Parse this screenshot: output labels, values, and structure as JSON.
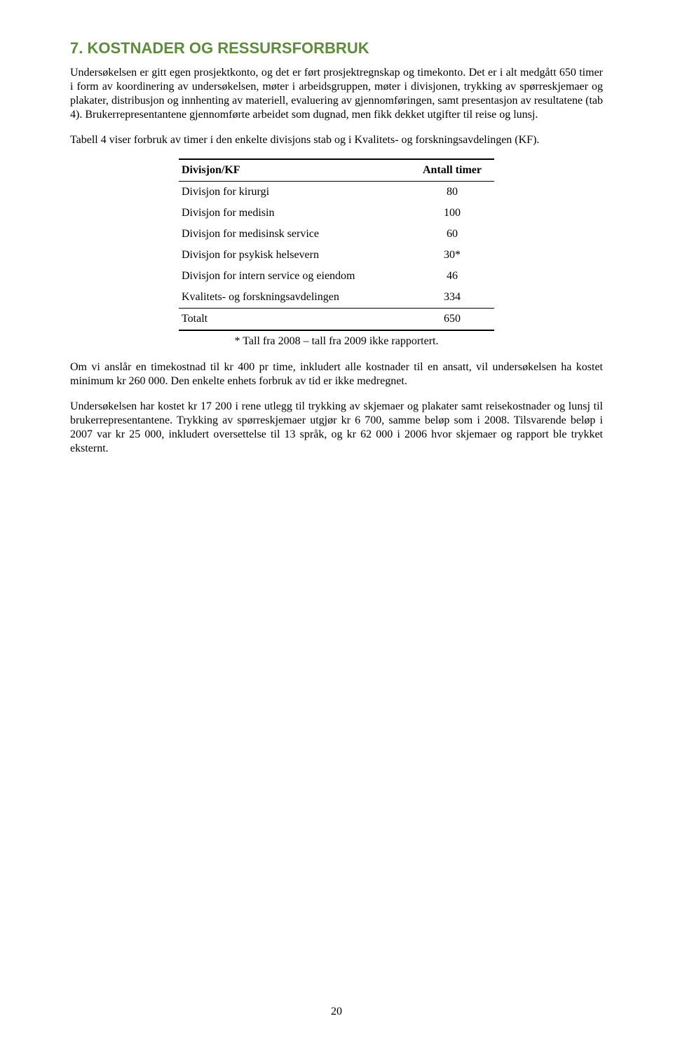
{
  "heading": "7. KOSTNADER OG RESSURSFORBRUK",
  "para1": "Undersøkelsen er gitt egen prosjektkonto, og det er ført prosjektregnskap og timekonto. Det er i alt medgått 650 timer i form av koordinering av undersøkelsen, møter i arbeidsgruppen, møter i divisjonen, trykking av spørreskjemaer og plakater, distribusjon og innhenting av materiell, evaluering av gjennomføringen, samt presentasjon av resultatene (tab 4). Brukerrepresentantene gjennomførte arbeidet som dugnad, men fikk dekket utgifter til reise og lunsj.",
  "para2": "Tabell 4 viser forbruk av timer i den enkelte divisjons stab og i Kvalitets- og forskningsavdelingen (KF).",
  "table": {
    "col1_header": "Divisjon/KF",
    "col2_header": "Antall timer",
    "rows": [
      {
        "label": "Divisjon for kirurgi",
        "value": "80"
      },
      {
        "label": "Divisjon for medisin",
        "value": "100"
      },
      {
        "label": "Divisjon for medisinsk service",
        "value": "60"
      },
      {
        "label": "Divisjon for psykisk helsevern",
        "value": "30*"
      },
      {
        "label": "Divisjon for intern service og eiendom",
        "value": "46"
      },
      {
        "label": "Kvalitets- og forskningsavdelingen",
        "value": "334"
      }
    ],
    "total_label": "Totalt",
    "total_value": "650",
    "footnote": "* Tall fra 2008 – tall fra 2009 ikke rapportert."
  },
  "para3": "Om vi anslår en timekostnad til kr 400 pr time, inkludert alle kostnader til en ansatt, vil undersøkelsen ha kostet minimum kr 260 000. Den enkelte enhets forbruk av tid er ikke medregnet.",
  "para4": "Undersøkelsen har kostet kr 17 200 i rene utlegg til trykking av skjemaer og plakater samt reisekostnader og lunsj til brukerrepresentantene. Trykking av spørreskjemaer utgjør kr 6 700, samme beløp som i 2008. Tilsvarende beløp i 2007 var kr 25 000, inkludert oversettelse til 13 språk, og kr 62 000 i 2006 hvor skjemaer og rapport ble trykket eksternt.",
  "page_number": "20",
  "colors": {
    "heading": "#5f8b3c",
    "text": "#000000",
    "background": "#ffffff"
  }
}
